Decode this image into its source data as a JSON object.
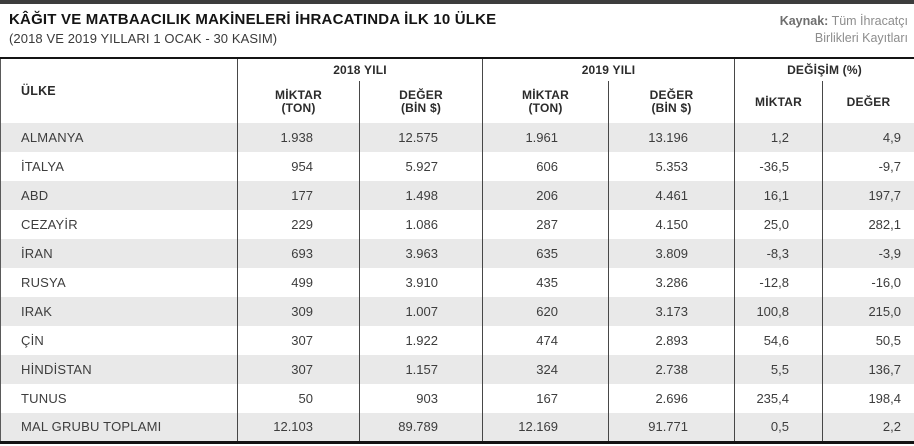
{
  "chart_data": {
    "type": "table",
    "title": "KÂĞIT VE MATBAACILIK MAKİNELERİ İHRACATINDA İLK 10 ÜLKE",
    "subtitle": "(2018 VE 2019 YILLARI 1 OCAK - 30 KASIM)",
    "source": {
      "label": "Kaynak:",
      "line1": " Tüm İhracatçı",
      "line2": "Birlikleri Kayıtları"
    },
    "header": {
      "country": "ÜLKE",
      "group_2018": "2018 YILI",
      "group_2019": "2019 YILI",
      "group_change": "DEĞİŞİM (%)",
      "miktar": "MİKTAR",
      "miktar_unit": "(TON)",
      "deger": "DEĞER",
      "deger_unit": "(BİN $)",
      "change_miktar": "MİKTAR",
      "change_deger": "DEĞER"
    },
    "rows": [
      {
        "country": "ALMANYA",
        "m2018": "1.938",
        "d2018": "12.575",
        "m2019": "1.961",
        "d2019": "13.196",
        "cm": "1,2",
        "cd": "4,9"
      },
      {
        "country": "İTALYA",
        "m2018": "954",
        "d2018": "5.927",
        "m2019": "606",
        "d2019": "5.353",
        "cm": "-36,5",
        "cd": "-9,7"
      },
      {
        "country": "ABD",
        "m2018": "177",
        "d2018": "1.498",
        "m2019": "206",
        "d2019": "4.461",
        "cm": "16,1",
        "cd": "197,7"
      },
      {
        "country": "CEZAYİR",
        "m2018": "229",
        "d2018": "1.086",
        "m2019": "287",
        "d2019": "4.150",
        "cm": "25,0",
        "cd": "282,1"
      },
      {
        "country": "İRAN",
        "m2018": "693",
        "d2018": "3.963",
        "m2019": "635",
        "d2019": "3.809",
        "cm": "-8,3",
        "cd": "-3,9"
      },
      {
        "country": "RUSYA",
        "m2018": "499",
        "d2018": "3.910",
        "m2019": "435",
        "d2019": "3.286",
        "cm": "-12,8",
        "cd": "-16,0"
      },
      {
        "country": "IRAK",
        "m2018": "309",
        "d2018": "1.007",
        "m2019": "620",
        "d2019": "3.173",
        "cm": "100,8",
        "cd": "215,0"
      },
      {
        "country": "ÇİN",
        "m2018": "307",
        "d2018": "1.922",
        "m2019": "474",
        "d2019": "2.893",
        "cm": "54,6",
        "cd": "50,5"
      },
      {
        "country": "HİNDİSTAN",
        "m2018": "307",
        "d2018": "1.157",
        "m2019": "324",
        "d2019": "2.738",
        "cm": "5,5",
        "cd": "136,7"
      },
      {
        "country": "TUNUS",
        "m2018": "50",
        "d2018": "903",
        "m2019": "167",
        "d2019": "2.696",
        "cm": "235,4",
        "cd": "198,4"
      },
      {
        "country": "MAL GRUBU TOPLAMI",
        "m2018": "12.103",
        "d2018": "89.789",
        "m2019": "12.169",
        "d2019": "91.771",
        "cm": "0,5",
        "cd": "2,2",
        "is_total": true
      }
    ]
  },
  "colors": {
    "stripe": "#e9e9e9",
    "top_rule": "#3d3d3d",
    "grid_line": "#474747",
    "frame_line": "#141414",
    "text": "#3d3d3d",
    "muted_text": "#8d8d8d"
  }
}
